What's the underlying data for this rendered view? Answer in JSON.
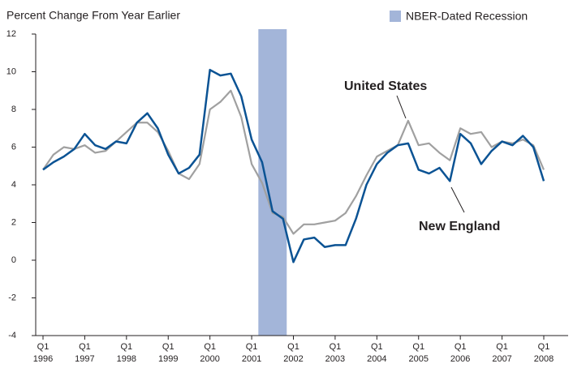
{
  "chart_data": {
    "type": "line",
    "y_axis_label": "Percent Change From Year Earlier",
    "x": [
      1996,
      1996.25,
      1996.5,
      1996.75,
      1997,
      1997.25,
      1997.5,
      1997.75,
      1998,
      1998.25,
      1998.5,
      1998.75,
      1999,
      1999.25,
      1999.5,
      1999.75,
      2000,
      2000.25,
      2000.5,
      2000.75,
      2001,
      2001.25,
      2001.5,
      2001.75,
      2002,
      2002.25,
      2002.5,
      2002.75,
      2003,
      2003.25,
      2003.5,
      2003.75,
      2004,
      2004.25,
      2004.5,
      2004.75,
      2005,
      2005.25,
      2005.5,
      2005.75,
      2006,
      2006.25,
      2006.5,
      2006.75,
      2007,
      2007.25,
      2007.5,
      2007.75,
      2008
    ],
    "series": [
      {
        "name": "United States",
        "color": "#a0a0a0",
        "values": [
          4.8,
          5.6,
          6.0,
          5.9,
          6.1,
          5.7,
          5.8,
          6.3,
          6.8,
          7.3,
          7.3,
          6.8,
          5.8,
          4.6,
          4.3,
          5.1,
          8.0,
          8.4,
          9.0,
          7.6,
          5.1,
          4.1,
          2.5,
          2.3,
          1.4,
          1.9,
          1.9,
          2.0,
          2.1,
          2.5,
          3.4,
          4.5,
          5.5,
          5.8,
          6.1,
          7.4,
          6.1,
          6.2,
          5.7,
          5.3,
          7.0,
          6.7,
          6.8,
          6.0,
          6.3,
          6.2,
          6.4,
          6.1,
          4.8
        ]
      },
      {
        "name": "New England",
        "color": "#0b5394",
        "values": [
          4.8,
          5.2,
          5.5,
          5.9,
          6.7,
          6.1,
          5.9,
          6.3,
          6.2,
          7.3,
          7.8,
          7.0,
          5.6,
          4.6,
          4.9,
          5.6,
          10.1,
          9.8,
          9.9,
          8.7,
          6.4,
          5.2,
          2.6,
          2.2,
          -0.1,
          1.1,
          1.2,
          0.7,
          0.8,
          0.8,
          2.2,
          4.0,
          5.1,
          5.7,
          6.1,
          6.2,
          4.8,
          4.6,
          4.9,
          4.2,
          6.7,
          6.2,
          5.1,
          5.8,
          6.3,
          6.1,
          6.6,
          6.0,
          4.2
        ]
      }
    ],
    "recession": {
      "name": "NBER-Dated Recession",
      "color": "#a3b5d9",
      "start": 2001.16,
      "end": 2001.84
    },
    "xlim": [
      1996,
      2008
    ],
    "xticks": [
      {
        "value": 1996,
        "label": "Q1 1996"
      },
      {
        "value": 1997,
        "label": "Q1 1997"
      },
      {
        "value": 1998,
        "label": "Q1 1998"
      },
      {
        "value": 1999,
        "label": "Q1 1999"
      },
      {
        "value": 2000,
        "label": "Q1 2000"
      },
      {
        "value": 2001,
        "label": "Q1 2001"
      },
      {
        "value": 2002,
        "label": "Q1 2002"
      },
      {
        "value": 2003,
        "label": "Q1 2003"
      },
      {
        "value": 2004,
        "label": "Q1 2004"
      },
      {
        "value": 2005,
        "label": "Q1 2005"
      },
      {
        "value": 2006,
        "label": "Q1 2006"
      },
      {
        "value": 2007,
        "label": "Q1 2007"
      },
      {
        "value": 2008,
        "label": "Q1 2008"
      }
    ],
    "ylim": [
      -4,
      12
    ],
    "yticks": [
      -4,
      -2,
      0,
      2,
      4,
      6,
      8,
      10,
      12
    ],
    "grid": false
  }
}
